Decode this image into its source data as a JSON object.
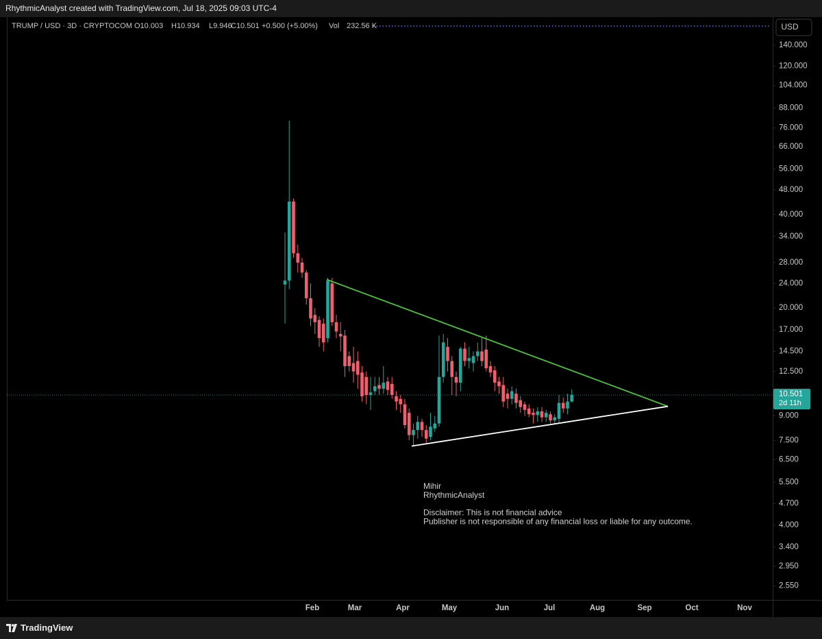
{
  "header": {
    "caption": "RhythmicAnalyst created with TradingView.com, Jul 18, 2025 09:03 UTC-4"
  },
  "footer": {
    "brand": "TradingView"
  },
  "chart_data": {
    "type": "candlestick",
    "symbol": "TRUMP / USD · 3D · CRYPTOCOM",
    "legend": [
      "O10.003",
      "H10.934",
      "L9.946",
      "C10.501",
      "+0.500 (+5.00%)",
      "Vol",
      "232.56 K"
    ],
    "currency": "USD",
    "log_scale": true,
    "up_color": "#26a69a",
    "down_color": "#ef5f6d",
    "ylim": [
      2.3,
      172.5
    ],
    "yticks": [
      {
        "value": 140,
        "label": "140.000"
      },
      {
        "value": 120,
        "label": "120.000"
      },
      {
        "value": 104,
        "label": "104.000"
      },
      {
        "value": 88,
        "label": "88.000"
      },
      {
        "value": 76,
        "label": "76.000"
      },
      {
        "value": 66,
        "label": "66.000"
      },
      {
        "value": 56,
        "label": "56.000"
      },
      {
        "value": 48,
        "label": "48.000"
      },
      {
        "value": 40,
        "label": "40.000"
      },
      {
        "value": 34,
        "label": "34.000"
      },
      {
        "value": 28,
        "label": "28.000"
      },
      {
        "value": 24,
        "label": "24.000"
      },
      {
        "value": 20,
        "label": "20.000"
      },
      {
        "value": 17,
        "label": "17.000"
      },
      {
        "value": 14.5,
        "label": "14.500"
      },
      {
        "value": 12.5,
        "label": "12.500"
      },
      {
        "value": 9,
        "label": "9.000"
      },
      {
        "value": 7.5,
        "label": "7.500"
      },
      {
        "value": 6.5,
        "label": "6.500"
      },
      {
        "value": 5.5,
        "label": "5.500"
      },
      {
        "value": 4.7,
        "label": "4.700"
      },
      {
        "value": 4,
        "label": "4.000"
      },
      {
        "value": 3.4,
        "label": "3.400"
      },
      {
        "value": 2.95,
        "label": "2.950"
      },
      {
        "value": 2.55,
        "label": "2.550"
      }
    ],
    "months": [
      "Feb",
      "Mar",
      "Apr",
      "May",
      "Jun",
      "Jul",
      "Aug",
      "Sep",
      "Oct",
      "Nov"
    ],
    "last_price": 10.501,
    "countdown": "2d 11h",
    "open": [
      23.8,
      24.5,
      44,
      30,
      28,
      26,
      21.5,
      19,
      18.3,
      17.8,
      16,
      24,
      18,
      16.5,
      16.3,
      14,
      13.3,
      13.5,
      12.4,
      12,
      10.5,
      10.8,
      11.3,
      11,
      11.6,
      11.4,
      10.4,
      10.2,
      9.8,
      9.2,
      7.8,
      8.1,
      8.6,
      8.1,
      7.7,
      8.2,
      8.5,
      12,
      15,
      13.5,
      12,
      11.5,
      14.8,
      13.5,
      13.3,
      14,
      14.5,
      14.7,
      13,
      12.6,
      11.6,
      11.3,
      10.6,
      10.2,
      10.6,
      10.1,
      9.8,
      9.5,
      9.2,
      9.05,
      9.3,
      8.9,
      9.1,
      8.7,
      8.8,
      9.9,
      9.5,
      10.003
    ],
    "high": [
      35,
      80,
      45,
      32,
      29,
      26.5,
      24,
      20,
      18.8,
      18.5,
      25,
      25,
      19,
      18,
      17,
      14.5,
      15,
      14.5,
      13,
      12.5,
      12,
      12,
      12,
      13,
      12,
      12,
      10.8,
      10.5,
      10.2,
      9.5,
      8.5,
      9,
      8.8,
      8.4,
      9.2,
      9,
      16.3,
      16.5,
      16,
      14,
      12.5,
      15,
      15.5,
      15,
      14.5,
      15.5,
      16,
      16.3,
      13.5,
      13,
      12,
      12,
      11,
      11.2,
      11,
      10.4,
      10,
      9.8,
      9.5,
      9.6,
      9.6,
      9.4,
      9.3,
      9.1,
      10.5,
      10.3,
      10.6,
      10.934
    ],
    "low": [
      17.8,
      23,
      29,
      26,
      25,
      20.5,
      17.5,
      16.5,
      15,
      14.5,
      15.5,
      17.5,
      16,
      14.5,
      12,
      12.5,
      11.5,
      11,
      10,
      9.8,
      9.4,
      10.5,
      10.5,
      10.6,
      10.5,
      10.2,
      9.4,
      9.2,
      8.2,
      7.5,
      7.2,
      7.6,
      7.7,
      7.3,
      7.5,
      8,
      8.3,
      11.5,
      12.5,
      10.5,
      10.4,
      10.8,
      13,
      12.8,
      12.5,
      13.5,
      13,
      12.5,
      12,
      10.8,
      10.6,
      9.6,
      9.5,
      9.8,
      9.5,
      9.2,
      9,
      8.9,
      8.5,
      8.6,
      8.6,
      8.6,
      8.5,
      8.5,
      8.5,
      9.2,
      9.1,
      9.946
    ],
    "close": [
      24.5,
      44,
      30,
      28,
      26,
      21.5,
      18.5,
      18,
      16,
      15.5,
      24.5,
      18,
      16.8,
      16.2,
      13,
      13,
      12.5,
      12.2,
      10.4,
      10.5,
      10.7,
      11.2,
      11,
      11.5,
      10.9,
      10.5,
      10,
      9.8,
      8.4,
      7.8,
      8.1,
      8.6,
      8.1,
      7.6,
      8.3,
      8.5,
      12,
      15.5,
      13.5,
      12,
      11.5,
      14.8,
      13.5,
      13.8,
      14,
      14.5,
      13.5,
      12.8,
      12.4,
      11.5,
      11.2,
      10,
      10.2,
      10.8,
      9.9,
      9.6,
      9.4,
      9.1,
      9.05,
      9.3,
      8.9,
      9.2,
      8.7,
      8.9,
      9.9,
      9.5,
      10,
      10.501
    ],
    "trendlines": [
      {
        "color": "#4cc73a",
        "start": 24.7,
        "end": 9.65
      },
      {
        "color": "#ffffff",
        "start": 7.19,
        "end": 9.65
      }
    ],
    "annotation": [
      "Mihir",
      "RhythmicAnalyst",
      "",
      "Disclaimer: This is not financial advice",
      "Publisher is not responsible of any financial loss or liable for any outcome."
    ]
  }
}
